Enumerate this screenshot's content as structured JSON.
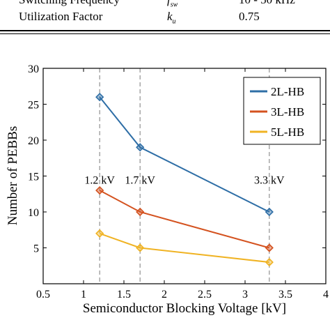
{
  "table": {
    "rows": [
      {
        "label": "Switching Frequency",
        "symbol": "f",
        "subscript": "sw",
        "value": "10 - 50 kHz"
      },
      {
        "label": "Utilization Factor",
        "symbol": "k",
        "subscript": "u",
        "value": "0.75"
      }
    ]
  },
  "chart_data": {
    "type": "line",
    "xlabel": "Semiconductor Blocking Voltage [kV]",
    "ylabel": "Number of PEBBs",
    "xlim": [
      0.5,
      4
    ],
    "ylim": [
      0,
      30
    ],
    "xticks": [
      "0.5",
      "1",
      "1.5",
      "2",
      "2.5",
      "3",
      "3.5",
      "4"
    ],
    "yticks": [
      "5",
      "10",
      "15",
      "20",
      "25",
      "30"
    ],
    "legend_position": "top-right",
    "series": [
      {
        "name": "2L-HB",
        "color": "#2e6ea6",
        "x": [
          1.2,
          1.7,
          3.3
        ],
        "y": [
          26,
          19,
          10
        ]
      },
      {
        "name": "3L-HB",
        "color": "#d4521f",
        "x": [
          1.2,
          1.7,
          3.3
        ],
        "y": [
          13,
          10,
          5
        ]
      },
      {
        "name": "5L-HB",
        "color": "#f0b323",
        "x": [
          1.2,
          1.7,
          3.3
        ],
        "y": [
          7,
          5,
          3
        ]
      }
    ],
    "vlines": [
      {
        "x": 1.2,
        "label": "1.2 kV"
      },
      {
        "x": 1.7,
        "label": "1.7 kV"
      },
      {
        "x": 3.3,
        "label": "3.3 kV"
      }
    ],
    "vline_label_y": 14.5
  }
}
